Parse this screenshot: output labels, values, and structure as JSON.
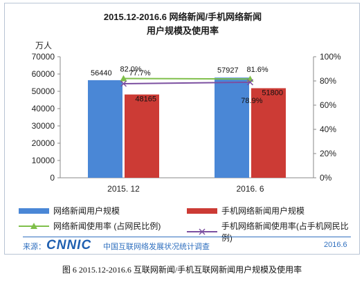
{
  "chart_data": {
    "type": "bar",
    "title": "2015.12-2016.6 网络新闻/手机网络新闻",
    "subtitle": "用户规模及使用率",
    "ylabel": "万人",
    "categories": [
      "2015. 12",
      "2016. 6"
    ],
    "ylim": [
      0,
      70000
    ],
    "y_ticks": [
      "0",
      "10000",
      "20000",
      "30000",
      "40000",
      "50000",
      "60000",
      "70000"
    ],
    "y2lim": [
      0,
      100
    ],
    "y2_ticks": [
      "0%",
      "20%",
      "40%",
      "60%",
      "80%",
      "100%"
    ],
    "series": [
      {
        "name": "网络新闻用户规模",
        "kind": "bar",
        "axis": "left",
        "color": "#4a87d6",
        "values": [
          56440,
          57927
        ],
        "labels": [
          "56440",
          "57927"
        ]
      },
      {
        "name": "手机网络新闻用户规模",
        "kind": "bar",
        "axis": "left",
        "color": "#cc3b35",
        "values": [
          48165,
          51800
        ],
        "labels": [
          "48165",
          "51800"
        ]
      },
      {
        "name": "网络新闻使用率 (占网民比例)",
        "kind": "line",
        "axis": "right",
        "color": "#7fbf4a",
        "marker": "triangle",
        "values": [
          82.0,
          81.6
        ],
        "labels": [
          "82.0%",
          "81.6%"
        ]
      },
      {
        "name": "手机网络新闻使用率(占手机网民比例)",
        "kind": "line",
        "axis": "right",
        "color": "#7b4fa0",
        "marker": "x",
        "values": [
          77.7,
          78.9
        ],
        "labels": [
          "77.7%",
          "78.9%"
        ]
      }
    ],
    "grid": false,
    "legend_position": "bottom"
  },
  "footer": {
    "source_label": "来源：",
    "brand": "CNNIC",
    "org": "中国互联网络发展状况统计调查",
    "date": "2016.6"
  },
  "caption": "图  6 2015.12-2016.6 互联网新闻/手机互联网新闻用户规模及使用率"
}
